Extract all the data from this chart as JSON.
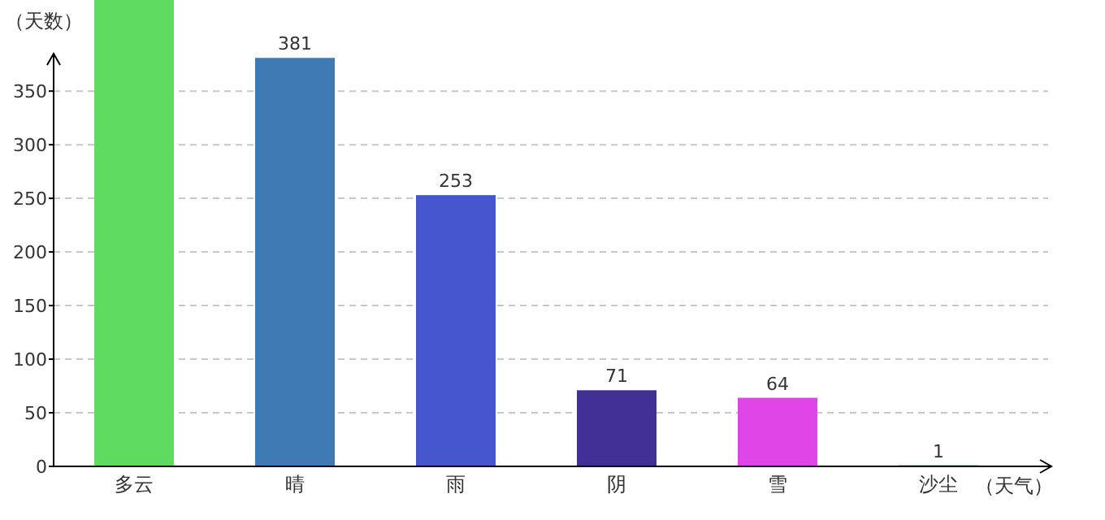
{
  "chart_data": {
    "type": "bar",
    "xlabel": "（天气）",
    "ylabel": "（天数）",
    "categories": [
      "多云",
      "晴",
      "雨",
      "阴",
      "雪",
      "沙尘"
    ],
    "values": [
      435,
      381,
      253,
      71,
      64,
      1
    ],
    "colors": [
      "#5fdc5f",
      "#3f7ab5",
      "#4556cf",
      "#433096",
      "#e045e8",
      "#2a7a7a"
    ],
    "ylim": [
      0,
      435
    ],
    "yticks": [
      0,
      50,
      100,
      150,
      200,
      250,
      300,
      350
    ],
    "value_labels": [
      null,
      "381",
      "253",
      "71",
      "64",
      "1"
    ],
    "grid": "y"
  }
}
